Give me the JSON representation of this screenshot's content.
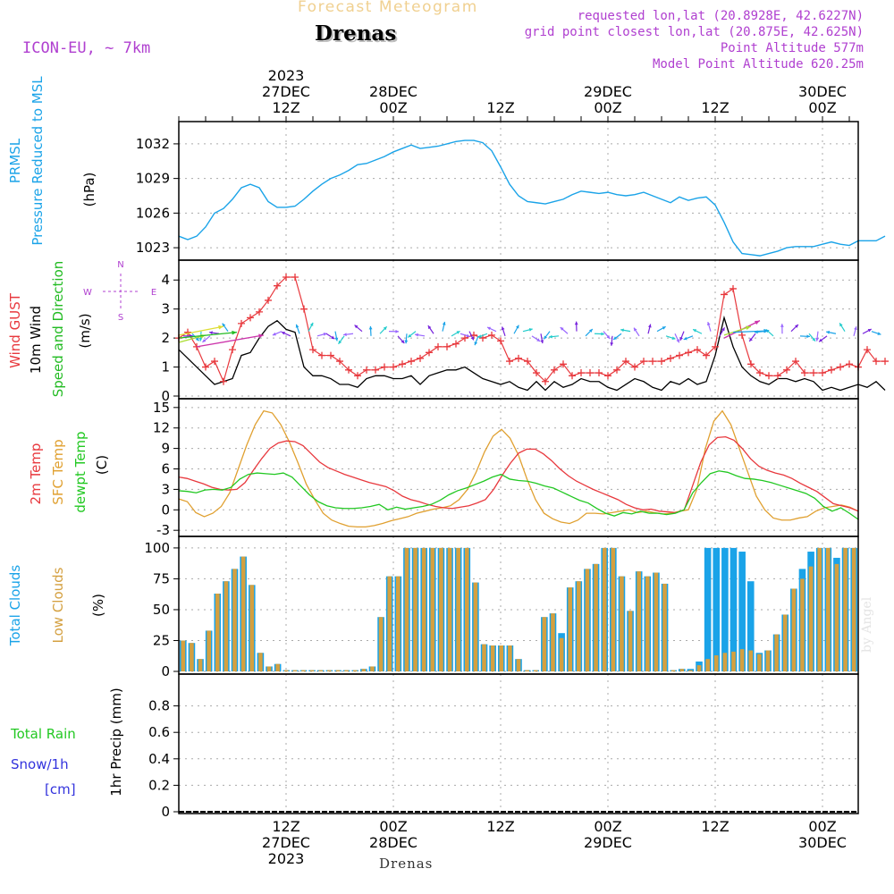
{
  "header": {
    "product": "Forecast Meteogram",
    "location": "Drenas",
    "model": "ICON-EU, ~ 7km",
    "requested": "requested lon,lat (20.8928E, 42.6227N)",
    "grid_point": "grid point closest lon,lat (20.875E, 42.625N)",
    "point_altitude": "Point Altitude 577m",
    "model_altitude": "Model Point Altitude 620.25m",
    "footer": "Drenas",
    "credit": "by Angel"
  },
  "colors": {
    "pressure": "#1aa3e8",
    "gust": "#e8383d",
    "wind": "#000000",
    "direction": "#22bb22",
    "t2m": "#e8383d",
    "sfc": "#e0a030",
    "dewpt": "#22c822",
    "total_clouds": "#1aa3e8",
    "low_clouds": "#d4a040",
    "snow": "#3333dd",
    "purple": "#b040d0"
  },
  "chart_data": [
    {
      "type": "line",
      "name": "prmsl",
      "ylabel_lines": [
        "PRMSL",
        "Pressure Reduced to MSL"
      ],
      "unit": "(hPa)",
      "x_start_hour": 0,
      "x_step_hours": 1,
      "ylim": [
        1022,
        1033
      ],
      "yticks": [
        1023,
        1026,
        1029,
        1032
      ],
      "values": [
        1024.0,
        1023.7,
        1024.0,
        1024.8,
        1026.0,
        1026.4,
        1027.2,
        1028.2,
        1028.5,
        1028.2,
        1027.0,
        1026.5,
        1026.5,
        1026.6,
        1027.2,
        1027.9,
        1028.5,
        1029.0,
        1029.3,
        1029.7,
        1030.2,
        1030.3,
        1030.6,
        1030.9,
        1031.3,
        1031.6,
        1031.9,
        1031.6,
        1031.7,
        1031.8,
        1032.0,
        1032.2,
        1032.3,
        1032.3,
        1032.1,
        1031.4,
        1030.0,
        1028.5,
        1027.5,
        1027.0,
        1026.9,
        1026.8,
        1027.0,
        1027.2,
        1027.6,
        1027.9,
        1027.8,
        1027.7,
        1027.8,
        1027.6,
        1027.5,
        1027.6,
        1027.8,
        1027.5,
        1027.2,
        1026.9,
        1027.4,
        1027.1,
        1027.3,
        1027.4,
        1026.7,
        1025.2,
        1023.5,
        1022.5,
        1022.4,
        1022.3,
        1022.5,
        1022.7,
        1023.0,
        1023.1,
        1023.1,
        1023.1,
        1023.3,
        1023.5,
        1023.3,
        1023.2,
        1023.6,
        1023.6,
        1023.6,
        1024.0
      ]
    },
    {
      "type": "line",
      "name": "wind",
      "ylabel_lines": [
        "Wind GUST",
        "10m Wind",
        "Speed and Direction"
      ],
      "unit": "(m/s)",
      "compass": {
        "n": "N",
        "s": "S",
        "e": "E",
        "w": "W"
      },
      "ylim": [
        0,
        4.5
      ],
      "yticks": [
        0,
        1,
        2,
        3,
        4
      ],
      "series": [
        {
          "name": "Wind GUST",
          "values": [
            2.0,
            2.2,
            1.7,
            1.0,
            1.2,
            0.5,
            1.6,
            2.5,
            2.7,
            2.9,
            3.3,
            3.8,
            4.1,
            4.1,
            3.0,
            1.6,
            1.4,
            1.4,
            1.2,
            0.9,
            0.7,
            0.9,
            0.9,
            1.0,
            1.0,
            1.1,
            1.2,
            1.3,
            1.5,
            1.7,
            1.7,
            1.8,
            2.0,
            2.1,
            2.0,
            2.1,
            1.9,
            1.2,
            1.3,
            1.2,
            0.8,
            0.5,
            0.9,
            1.1,
            0.7,
            0.8,
            0.8,
            0.8,
            0.7,
            0.9,
            1.2,
            1.0,
            1.2,
            1.2,
            1.2,
            1.3,
            1.4,
            1.5,
            1.6,
            1.4,
            1.7,
            3.5,
            3.7,
            2.1,
            1.1,
            0.8,
            0.7,
            0.7,
            0.9,
            1.2,
            0.8,
            0.8,
            0.8,
            0.9,
            1.0,
            1.1,
            1.0,
            1.6,
            1.2,
            1.2
          ]
        },
        {
          "name": "10m Wind",
          "values": [
            1.6,
            1.3,
            1.0,
            0.7,
            0.4,
            0.5,
            0.6,
            1.4,
            1.5,
            2.0,
            2.4,
            2.6,
            2.3,
            2.2,
            1.0,
            0.7,
            0.7,
            0.6,
            0.4,
            0.4,
            0.3,
            0.6,
            0.7,
            0.7,
            0.6,
            0.6,
            0.7,
            0.4,
            0.7,
            0.8,
            0.9,
            0.9,
            1.0,
            0.8,
            0.6,
            0.5,
            0.4,
            0.5,
            0.3,
            0.2,
            0.5,
            0.2,
            0.5,
            0.3,
            0.4,
            0.6,
            0.5,
            0.5,
            0.3,
            0.2,
            0.4,
            0.6,
            0.5,
            0.3,
            0.2,
            0.5,
            0.4,
            0.6,
            0.4,
            0.5,
            1.4,
            2.7,
            1.7,
            1.0,
            0.7,
            0.5,
            0.4,
            0.6,
            0.6,
            0.5,
            0.6,
            0.5,
            0.2,
            0.3,
            0.2,
            0.3,
            0.4,
            0.3,
            0.5,
            0.2
          ]
        }
      ]
    },
    {
      "type": "line",
      "name": "temperature",
      "ylabel_lines": [
        "2m Temp",
        "SFC Temp",
        "dewpt Temp"
      ],
      "unit": "(C)",
      "ylim": [
        -3.5,
        15.5
      ],
      "yticks": [
        -3,
        0,
        3,
        6,
        9,
        12,
        15
      ],
      "series": [
        {
          "name": "2m Temp",
          "values": [
            4.8,
            4.6,
            4.2,
            3.8,
            3.3,
            3.0,
            2.9,
            3.0,
            4.0,
            5.8,
            7.5,
            9.0,
            9.8,
            10.1,
            10.0,
            9.4,
            8.2,
            7.0,
            6.2,
            5.7,
            5.2,
            4.8,
            4.4,
            4.0,
            3.7,
            3.4,
            2.8,
            2.0,
            1.5,
            1.2,
            0.8,
            0.5,
            0.3,
            0.2,
            0.4,
            0.6,
            1.0,
            1.5,
            3.0,
            5.0,
            6.8,
            8.3,
            8.9,
            8.9,
            8.2,
            7.2,
            6.0,
            5.0,
            4.2,
            3.6,
            3.0,
            2.5,
            2.0,
            1.5,
            0.8,
            0.3,
            0.0,
            0.1,
            -0.2,
            -0.3,
            -0.4,
            0.0,
            3.5,
            7.0,
            9.5,
            10.6,
            10.7,
            10.2,
            9.0,
            7.5,
            6.4,
            5.8,
            5.4,
            5.1,
            4.6,
            3.9,
            3.3,
            2.7,
            1.8,
            0.9,
            0.6,
            0.3,
            -0.2
          ]
        },
        {
          "name": "SFC Temp",
          "values": [
            1.6,
            1.2,
            -0.4,
            -1.0,
            -0.5,
            0.5,
            2.5,
            6.0,
            9.5,
            12.5,
            14.5,
            14.2,
            12.5,
            10.0,
            7.0,
            3.8,
            1.5,
            -0.5,
            -1.5,
            -2.0,
            -2.4,
            -2.5,
            -2.5,
            -2.3,
            -2.0,
            -1.6,
            -1.3,
            -1.0,
            -0.5,
            -0.2,
            0.1,
            0.3,
            0.6,
            1.5,
            3.0,
            5.5,
            8.5,
            10.8,
            11.8,
            10.5,
            8.0,
            4.5,
            1.5,
            -0.5,
            -1.3,
            -1.8,
            -2.0,
            -1.5,
            -0.5,
            -0.5,
            -0.6,
            -0.4,
            -0.2,
            0.0,
            -0.4,
            -0.2,
            -0.4,
            -0.6,
            -0.5,
            -0.2,
            0.0,
            3.0,
            9.0,
            13.0,
            14.5,
            12.5,
            9.0,
            5.5,
            2.0,
            0.0,
            -1.2,
            -1.5,
            -1.5,
            -1.2,
            -1.0,
            -0.2,
            0.3,
            0.5,
            0.7,
            0.4,
            -0.2
          ]
        },
        {
          "name": "dewpt Temp",
          "values": [
            2.8,
            2.7,
            2.5,
            2.9,
            3.0,
            2.9,
            3.3,
            4.5,
            5.2,
            5.4,
            5.3,
            5.2,
            5.4,
            4.8,
            3.5,
            2.2,
            1.2,
            0.6,
            0.3,
            0.2,
            0.2,
            0.3,
            0.5,
            0.8,
            0.0,
            0.4,
            0.1,
            0.3,
            0.5,
            0.8,
            1.4,
            2.2,
            2.8,
            3.2,
            3.7,
            4.2,
            4.8,
            5.2,
            4.5,
            4.3,
            4.2,
            3.9,
            3.5,
            3.2,
            2.6,
            2.0,
            1.4,
            1.0,
            0.2,
            -0.5,
            -0.9,
            -0.4,
            -0.6,
            -0.2,
            -0.5,
            -0.5,
            -0.7,
            -0.5,
            0.0,
            2.5,
            4.0,
            5.3,
            5.7,
            5.5,
            5.0,
            4.6,
            4.5,
            4.3,
            4.0,
            3.6,
            3.2,
            2.8,
            2.4,
            1.7,
            0.5,
            -0.2,
            0.3,
            -0.5,
            -1.4
          ]
        }
      ]
    },
    {
      "type": "bar",
      "name": "clouds",
      "ylabel_lines": [
        "Total Clouds",
        "Low Clouds"
      ],
      "unit": "(%)",
      "ylim": [
        0,
        105
      ],
      "yticks": [
        0,
        25,
        50,
        75,
        100
      ],
      "series": [
        {
          "name": "Total Clouds",
          "values": [
            25,
            23,
            10,
            33,
            63,
            73,
            83,
            93,
            70,
            15,
            4,
            6,
            1,
            1,
            1,
            1,
            1,
            1,
            1,
            1,
            1,
            2,
            4,
            44,
            77,
            77,
            100,
            100,
            100,
            100,
            100,
            100,
            100,
            100,
            72,
            22,
            21,
            21,
            21,
            10,
            1,
            1,
            44,
            47,
            31,
            68,
            73,
            83,
            87,
            100,
            100,
            77,
            49,
            81,
            77,
            80,
            71,
            1,
            2,
            2,
            8,
            100,
            100,
            100,
            100,
            97,
            73,
            15,
            17,
            30,
            46,
            67,
            83,
            97,
            100,
            100,
            92,
            100,
            100
          ]
        },
        {
          "name": "Low Clouds",
          "values": [
            25,
            23,
            10,
            33,
            63,
            73,
            83,
            93,
            70,
            15,
            4,
            6,
            1,
            1,
            1,
            1,
            1,
            1,
            1,
            1,
            1,
            2,
            4,
            44,
            77,
            77,
            100,
            100,
            100,
            100,
            100,
            100,
            100,
            100,
            72,
            22,
            21,
            21,
            21,
            10,
            1,
            1,
            44,
            47,
            27,
            68,
            73,
            83,
            87,
            100,
            100,
            77,
            49,
            81,
            77,
            80,
            71,
            1,
            2,
            1,
            5,
            10,
            13,
            15,
            16,
            18,
            17,
            14,
            17,
            30,
            46,
            67,
            75,
            85,
            100,
            100,
            87,
            100,
            100
          ]
        }
      ]
    },
    {
      "type": "bar",
      "name": "precip",
      "ylabel_lines": [
        "Total  Rain",
        "Snow/1h",
        "[cm]"
      ],
      "unit": "1hr Precip (mm)",
      "ylim": [
        0,
        1.0
      ],
      "yticks": [
        "0",
        "0.2",
        "0.4",
        "0.6",
        "0.8"
      ],
      "values": []
    }
  ],
  "time_axis": {
    "top_labels": [
      {
        "lines": [
          "2023",
          "27DEC",
          "12Z"
        ],
        "hour": 12
      },
      {
        "lines": [
          "28DEC",
          "00Z"
        ],
        "hour": 24
      },
      {
        "lines": [
          "12Z"
        ],
        "hour": 36
      },
      {
        "lines": [
          "29DEC",
          "00Z"
        ],
        "hour": 48
      },
      {
        "lines": [
          "12Z"
        ],
        "hour": 60
      },
      {
        "lines": [
          "30DEC",
          "00Z"
        ],
        "hour": 72
      }
    ],
    "bottom_labels": [
      {
        "lines": [
          "12Z",
          "27DEC",
          "2023"
        ],
        "hour": 12
      },
      {
        "lines": [
          "00Z",
          "28DEC"
        ],
        "hour": 24
      },
      {
        "lines": [
          "12Z"
        ],
        "hour": 36
      },
      {
        "lines": [
          "00Z",
          "29DEC"
        ],
        "hour": 48
      },
      {
        "lines": [
          "12Z"
        ],
        "hour": 60
      },
      {
        "lines": [
          "00Z",
          "30DEC"
        ],
        "hour": 72
      }
    ],
    "range_hours": [
      0,
      76
    ]
  }
}
